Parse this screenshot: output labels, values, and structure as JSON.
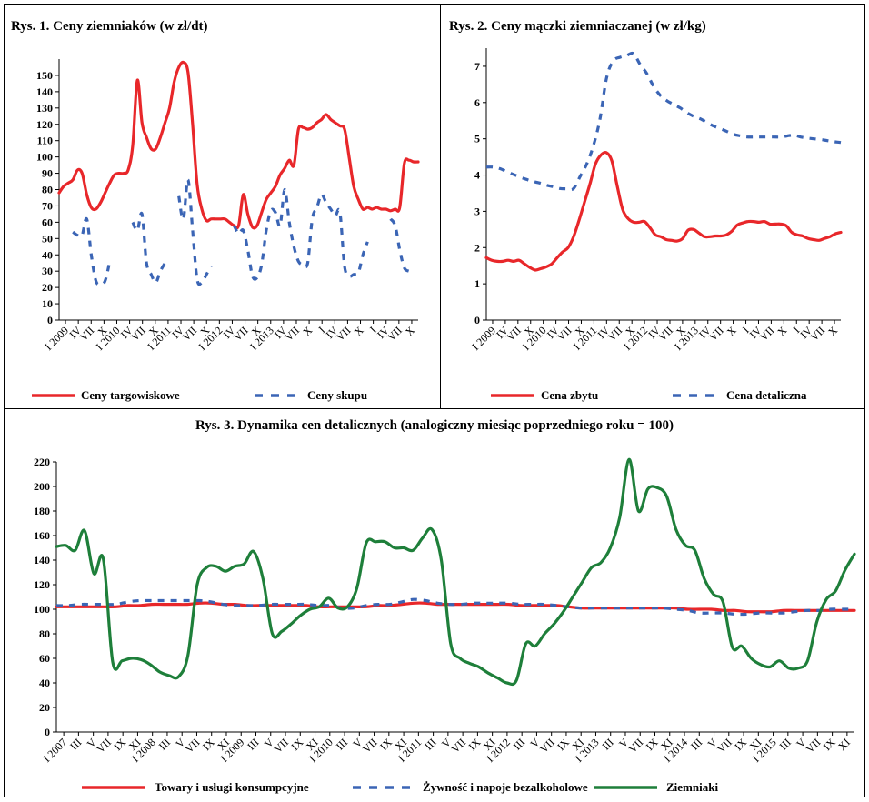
{
  "chart_data": [
    {
      "type": "line",
      "title": "Rys. 1. Ceny ziemniaków (w zł/dt)",
      "xlabel": "",
      "ylabel": "",
      "ylim": [
        0,
        160
      ],
      "yticks": [
        0,
        10,
        20,
        30,
        40,
        50,
        60,
        70,
        80,
        90,
        100,
        110,
        120,
        130,
        140,
        150
      ],
      "x_tick_labels": [
        "I 2009",
        "IV",
        "VII",
        "X",
        "I 2010",
        "IV",
        "VII",
        "X",
        "I 2011",
        "IV",
        "VII",
        "X",
        "I 2012",
        "IV",
        "VII",
        "X",
        "I 2013",
        "IV",
        "VII",
        "X",
        "I",
        "IV",
        "VII",
        "X",
        "I",
        "IV",
        "VII",
        "X"
      ],
      "series": [
        {
          "name": "Ceny targowiskowe",
          "color": "#e8272a",
          "dash": false,
          "values": [
            78,
            82,
            84,
            86,
            92,
            90,
            77,
            69,
            68,
            72,
            78,
            84,
            89,
            90,
            90,
            92,
            107,
            147,
            121,
            112,
            105,
            105,
            112,
            121,
            130,
            146,
            155,
            158,
            152,
            120,
            83,
            68,
            61,
            62,
            62,
            62,
            62,
            60,
            58,
            58,
            77,
            65,
            57,
            58,
            66,
            74,
            78,
            82,
            89,
            93,
            98,
            95,
            117,
            118,
            117,
            118,
            121,
            123,
            126,
            123,
            121,
            119,
            117,
            100,
            82,
            74,
            68,
            69,
            68,
            69,
            68,
            68,
            67,
            68,
            69,
            96,
            98,
            97,
            97
          ]
        },
        {
          "name": "Ceny skupu",
          "color": "#3b65b5",
          "dash": true,
          "values": [
            null,
            null,
            null,
            54,
            52,
            52,
            62,
            40,
            24,
            22,
            24,
            36,
            null,
            null,
            null,
            null,
            60,
            55,
            65,
            35,
            28,
            23,
            30,
            35,
            null,
            null,
            76,
            62,
            86,
            55,
            25,
            23,
            28,
            33,
            null,
            null,
            null,
            null,
            58,
            53,
            55,
            43,
            27,
            26,
            34,
            55,
            67,
            66,
            58,
            80,
            60,
            45,
            36,
            34,
            35,
            62,
            69,
            77,
            72,
            68,
            64,
            66,
            33,
            27,
            28,
            29,
            40,
            48,
            null,
            null,
            null,
            null,
            62,
            58,
            43,
            32,
            30,
            null,
            null
          ]
        }
      ]
    },
    {
      "type": "line",
      "title": "Rys. 2. Ceny mączki ziemniaczanej (w zł/kg)",
      "xlabel": "",
      "ylabel": "",
      "ylim": [
        0,
        7.5
      ],
      "yticks": [
        0,
        1,
        2,
        3,
        4,
        5,
        6,
        7
      ],
      "x_tick_labels": [
        "I 2009",
        "IV",
        "VII",
        "X",
        "I 2010",
        "IV",
        "VII",
        "X",
        "I 2011",
        "IV",
        "VII",
        "X",
        "I 2012",
        "IV",
        "VII",
        "X",
        "I 2013",
        "IV",
        "VII",
        "X",
        "I",
        "IV",
        "VII",
        "X",
        "I",
        "IV",
        "VII",
        "X"
      ],
      "series": [
        {
          "name": "Cena zbytu",
          "color": "#e8272a",
          "dash": false,
          "values": [
            1.72,
            1.65,
            1.62,
            1.62,
            1.65,
            1.62,
            1.65,
            1.55,
            1.45,
            1.38,
            1.42,
            1.47,
            1.55,
            1.72,
            1.88,
            2.0,
            2.3,
            2.75,
            3.25,
            3.75,
            4.3,
            4.55,
            4.62,
            4.4,
            3.7,
            3.05,
            2.8,
            2.7,
            2.7,
            2.72,
            2.55,
            2.35,
            2.3,
            2.22,
            2.2,
            2.18,
            2.25,
            2.48,
            2.5,
            2.4,
            2.3,
            2.3,
            2.32,
            2.32,
            2.35,
            2.45,
            2.62,
            2.68,
            2.72,
            2.72,
            2.7,
            2.72,
            2.65,
            2.65,
            2.65,
            2.6,
            2.42,
            2.35,
            2.32,
            2.25,
            2.22,
            2.2,
            2.25,
            2.3,
            2.38,
            2.42
          ]
        },
        {
          "name": "Cena detaliczna",
          "color": "#3b65b5",
          "dash": true,
          "values": [
            4.22,
            4.22,
            4.18,
            4.1,
            4.02,
            3.95,
            3.88,
            3.82,
            3.78,
            3.72,
            3.68,
            3.63,
            3.62,
            3.62,
            3.95,
            4.3,
            4.8,
            5.55,
            6.7,
            7.15,
            7.25,
            7.3,
            7.35,
            7.05,
            6.8,
            6.45,
            6.2,
            6.05,
            5.95,
            5.85,
            5.72,
            5.62,
            5.55,
            5.45,
            5.35,
            5.28,
            5.2,
            5.12,
            5.08,
            5.05,
            5.05,
            5.05,
            5.05,
            5.05,
            5.05,
            5.08,
            5.1,
            5.05,
            5.02,
            5.0,
            4.98,
            4.95,
            4.92,
            4.9
          ]
        }
      ]
    },
    {
      "type": "line",
      "title": "Rys. 3. Dynamika cen detalicznych (analogiczny miesiąc poprzedniego roku = 100)",
      "xlabel": "",
      "ylabel": "",
      "ylim": [
        0,
        220
      ],
      "yticks": [
        0,
        20,
        40,
        60,
        80,
        100,
        120,
        140,
        160,
        180,
        200,
        220
      ],
      "x_tick_labels": [
        "I 2007",
        "III",
        "V",
        "VII",
        "IX",
        "XI",
        "I 2008",
        "III",
        "V",
        "VII",
        "IX",
        "XI",
        "I 2009",
        "III",
        "V",
        "VII",
        "IX",
        "XI",
        "I 2010",
        "III",
        "V",
        "VII",
        "IX",
        "XI",
        "I 2011",
        "III",
        "V",
        "VII",
        "IX",
        "XI",
        "I 2012",
        "III",
        "V",
        "VII",
        "IX",
        "XI",
        "I 2013",
        "III",
        "V",
        "VII",
        "IX",
        "XI",
        "I 2014",
        "III",
        "V",
        "VII",
        "IX",
        "XI",
        "I 2015",
        "III",
        "V",
        "VII",
        "IX",
        "XI"
      ],
      "series": [
        {
          "name": "Towary i usługi konsumpcyjne",
          "color": "#e8272a",
          "dash": false,
          "values": [
            102,
            102,
            102,
            102,
            102,
            102,
            103,
            103,
            104,
            104,
            104,
            104,
            105,
            105,
            104,
            104,
            103,
            103,
            103,
            103,
            103,
            103,
            102,
            102,
            102,
            102,
            102,
            103,
            103,
            104,
            105,
            105,
            104,
            104,
            104,
            104,
            104,
            104,
            104,
            103,
            103,
            103,
            103,
            102,
            101,
            101,
            101,
            101,
            101,
            101,
            101,
            101,
            101,
            100,
            100,
            100,
            99,
            99,
            98,
            98,
            98,
            99,
            99,
            99,
            99,
            99,
            99,
            99
          ]
        },
        {
          "name": "Żywność i napoje bezalkoholowe",
          "color": "#3b65b5",
          "dash": true,
          "values": [
            103,
            103,
            104,
            104,
            104,
            104,
            106,
            107,
            107,
            107,
            107,
            107,
            107,
            106,
            104,
            103,
            103,
            103,
            104,
            104,
            104,
            104,
            103,
            103,
            101,
            101,
            103,
            104,
            104,
            106,
            108,
            107,
            105,
            104,
            104,
            105,
            105,
            105,
            105,
            104,
            104,
            104,
            103,
            102,
            101,
            101,
            101,
            101,
            101,
            101,
            101,
            101,
            100,
            99,
            97,
            97,
            97,
            96,
            96,
            97,
            97,
            97,
            98,
            99,
            99,
            100,
            100,
            100
          ]
        },
        {
          "name": "Ziemniaki",
          "color": "#1e7f3a",
          "dash": false,
          "values": [
            151,
            152,
            148,
            164,
            129,
            141,
            57,
            58,
            60,
            59,
            55,
            49,
            46,
            45,
            62,
            120,
            134,
            135,
            131,
            135,
            137,
            147,
            125,
            80,
            82,
            88,
            95,
            100,
            102,
            109,
            101,
            102,
            117,
            154,
            155,
            155,
            150,
            150,
            148,
            158,
            165,
            140,
            72,
            60,
            56,
            53,
            48,
            44,
            40,
            42,
            72,
            70,
            80,
            88,
            98,
            110,
            122,
            134,
            138,
            150,
            175,
            222,
            180,
            198,
            199,
            192,
            165,
            152,
            148,
            125,
            112,
            106,
            69,
            70,
            60,
            55,
            53,
            58,
            52,
            52,
            58,
            90,
            108,
            115,
            132,
            145
          ]
        }
      ]
    }
  ]
}
